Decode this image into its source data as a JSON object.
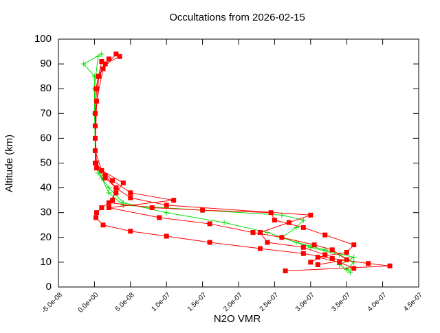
{
  "chart_data": {
    "type": "line",
    "title": "Occultations from 2026-02-15",
    "x_label": "N2O VMR",
    "y_label": "Altitude (km)",
    "xlim": [
      -5e-08,
      4.5e-07
    ],
    "ylim": [
      0,
      100
    ],
    "xticks": [
      {
        "value": -5e-08,
        "label": "-5.0e-08"
      },
      {
        "value": 0,
        "label": "0.0e+00"
      },
      {
        "value": 5e-08,
        "label": "5.0e-08"
      },
      {
        "value": 1e-07,
        "label": "1.0e-07"
      },
      {
        "value": 1.5e-07,
        "label": "1.5e-07"
      },
      {
        "value": 2e-07,
        "label": "2.0e-07"
      },
      {
        "value": 2.5e-07,
        "label": "2.5e-07"
      },
      {
        "value": 3e-07,
        "label": "3.0e-07"
      },
      {
        "value": 3.5e-07,
        "label": "3.5e-07"
      },
      {
        "value": 4e-07,
        "label": "4.0e-07"
      },
      {
        "value": 4.5e-07,
        "label": "4.5e-07"
      }
    ],
    "yticks": [
      0,
      10,
      20,
      30,
      40,
      50,
      60,
      70,
      80,
      90,
      100
    ],
    "series": [
      {
        "color": "#00dd00",
        "marker": "plus",
        "x": [
          1e-08,
          -1.5e-08,
          0,
          0,
          2e-09,
          1e-08,
          2e-08,
          4e-08,
          1.5e-07,
          2.6e-07,
          2.9e-07,
          2.8e-07,
          2.6e-07,
          3e-07,
          3.4e-07,
          3.6e-07,
          3.5e-07
        ],
        "values": [
          94,
          90,
          85,
          70,
          50,
          44,
          38,
          33,
          31,
          29,
          27,
          24,
          20,
          16,
          13,
          10,
          7
        ]
      },
      {
        "color": "#00dd00",
        "marker": "plus",
        "x": [
          5e-09,
          0,
          1e-09,
          5e-09,
          2e-08,
          4e-08,
          1e-07,
          1.8e-07,
          2.4e-07,
          2.8e-07,
          3.2e-07,
          3.6e-07,
          3.4e-07,
          3.55e-07
        ],
        "values": [
          93,
          80,
          55,
          46,
          40,
          34,
          30,
          26,
          22,
          18,
          15,
          12,
          9,
          6
        ]
      },
      {
        "color": "#ff0000",
        "marker": "square",
        "x": [
          3.5e-08,
          1.5e-08,
          5e-09,
          3e-09,
          1e-09,
          1e-09,
          2e-09,
          1.5e-08,
          3e-08,
          2.5e-08,
          1e-08,
          3e-09,
          2e-09,
          1.2e-08,
          5e-08,
          1e-07,
          1.6e-07,
          2.3e-07,
          2.9e-07,
          3.3e-07,
          3.8e-07,
          4.1e-07,
          2.65e-07
        ],
        "values": [
          93,
          90,
          85,
          80,
          70,
          60,
          50,
          45,
          40,
          35,
          32,
          30,
          28,
          25,
          22.5,
          20.5,
          18,
          15.5,
          13.5,
          11.5,
          9.5,
          8.5,
          6.5
        ]
      },
      {
        "color": "#ff0000",
        "marker": "square",
        "x": [
          3e-08,
          1.2e-08,
          3e-09,
          1e-09,
          1e-08,
          4e-08,
          3e-08,
          2e-08,
          8e-08,
          1.5e-07,
          2.45e-07,
          2.5e-07,
          2.9e-07,
          3.2e-07,
          3.6e-07,
          3.5e-07,
          3.1e-07,
          3.4e-07,
          3.6e-07
        ],
        "values": [
          94,
          88,
          75,
          55,
          47,
          42,
          38,
          34,
          32,
          31,
          30,
          27,
          24,
          21,
          17,
          14,
          12,
          10,
          7.5
        ]
      },
      {
        "color": "#ff0000",
        "marker": "square",
        "x": [
          2e-08,
          6e-09,
          1e-09,
          3e-09,
          1.5e-08,
          3e-08,
          5e-08,
          1e-07,
          3e-07,
          2.7e-07,
          2.3e-07,
          2.4e-07,
          2.9e-07,
          3.2e-07,
          3e-07
        ],
        "values": [
          92,
          85,
          65,
          48,
          44,
          40,
          36,
          33,
          29,
          26,
          22,
          18,
          16,
          13,
          10
        ]
      },
      {
        "color": "#ff0000",
        "marker": "square",
        "x": [
          1e-08,
          2e-09,
          1e-09,
          2.5e-08,
          5e-08,
          1.1e-07,
          2e-08,
          9e-08,
          1.6e-07,
          2.2e-07,
          2.6e-07,
          3.05e-07,
          3.3e-07,
          3.5e-07,
          3.1e-07
        ],
        "values": [
          91,
          80,
          50,
          43,
          38,
          35,
          32,
          28,
          25.5,
          22,
          20,
          17,
          15,
          11,
          9
        ]
      }
    ]
  }
}
